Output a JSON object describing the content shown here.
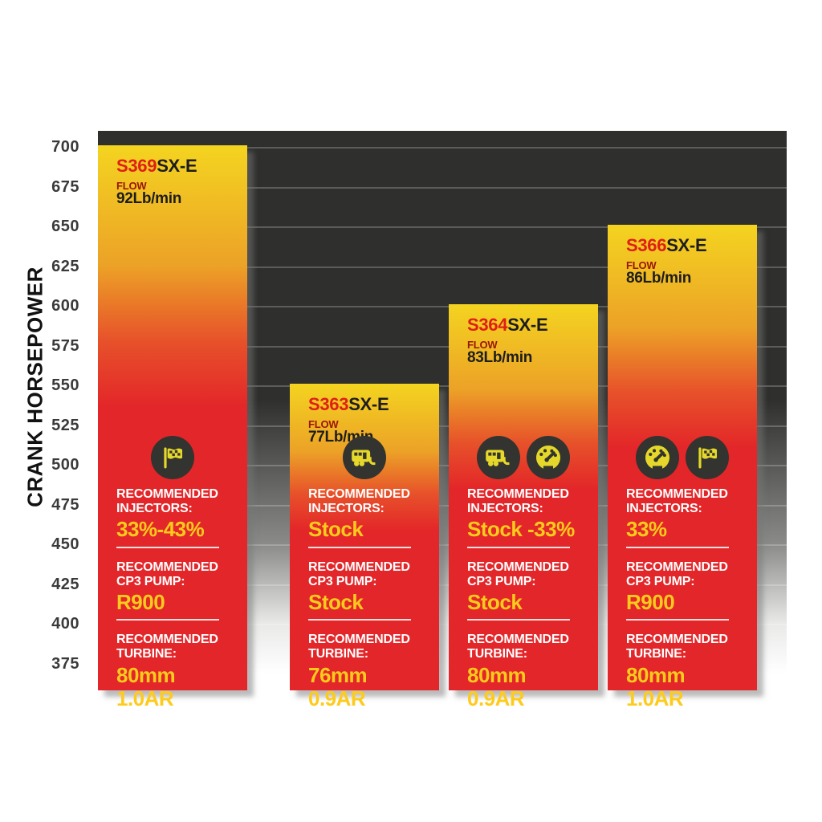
{
  "y_axis": {
    "label": "CRANK HORSEPOWER",
    "ticks": [
      700,
      675,
      650,
      625,
      600,
      575,
      550,
      525,
      500,
      475,
      450,
      425,
      400,
      375
    ]
  },
  "labels": {
    "flow": "FLOW",
    "recommended": "RECOMMENDED",
    "injectors": "INJECTORS:",
    "cp3_pump": "CP3 PUMP:",
    "turbine": "TURBINE:"
  },
  "bars": [
    {
      "model_prefix": "S363",
      "model_suffix": "SX-E",
      "flow": "77Lb/min",
      "icons": [
        "camper-icon"
      ],
      "injectors": "Stock",
      "cp3_pump": "Stock",
      "turbine": [
        "76mm",
        "0.9AR"
      ],
      "hp": 550
    },
    {
      "model_prefix": "S364",
      "model_suffix": "SX-E",
      "flow": "83Lb/min",
      "icons": [
        "camper-icon",
        "gauge-icon"
      ],
      "injectors": "Stock -33%",
      "cp3_pump": "Stock",
      "turbine": [
        "80mm",
        "0.9AR"
      ],
      "hp": 600
    },
    {
      "model_prefix": "S366",
      "model_suffix": "SX-E",
      "flow": "86Lb/min",
      "icons": [
        "gauge-icon",
        "flag-icon"
      ],
      "injectors": "33%",
      "cp3_pump": "R900",
      "turbine": [
        "80mm",
        "1.0AR"
      ],
      "hp": 650
    },
    {
      "model_prefix": "S369",
      "model_suffix": "SX-E",
      "flow": "92Lb/min",
      "icons": [
        "flag-icon"
      ],
      "injectors": "33%-43%",
      "cp3_pump": "R900",
      "turbine": [
        "80mm",
        "1.0AR"
      ],
      "hp": 700
    }
  ],
  "chart_data": {
    "type": "bar",
    "title": "",
    "categories": [
      "S363SX-E",
      "S364SX-E",
      "S366SX-E",
      "S369SX-E"
    ],
    "values": [
      550,
      600,
      650,
      700
    ],
    "flow_lb_min": [
      77,
      83,
      86,
      92
    ],
    "xlabel": "",
    "ylabel": "CRANK HORSEPOWER",
    "ylim": [
      375,
      709
    ],
    "yticks": [
      700,
      675,
      650,
      625,
      600,
      575,
      550,
      525,
      500,
      475,
      450,
      425,
      400,
      375
    ],
    "grid": "horizontal",
    "legend": false,
    "colors": {
      "bar_gradient_top": "#f4d420",
      "bar_gradient_bottom": "#e32629",
      "plot_background": "#2f2f2d",
      "accent_yellow": "#fdcb1c",
      "accent_red": "#df1f16",
      "label_white": "#ffffff"
    }
  }
}
